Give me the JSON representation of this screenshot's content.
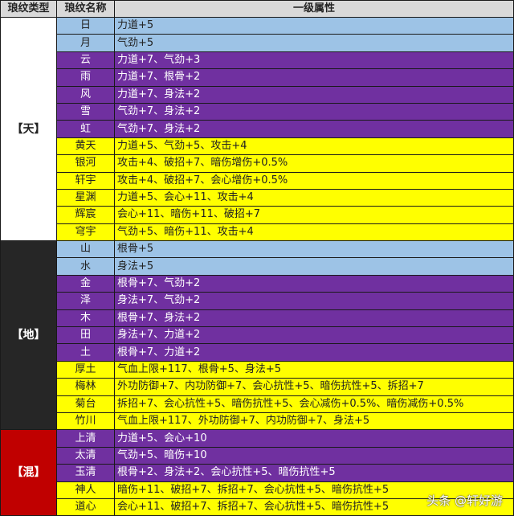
{
  "header": {
    "type": "琅纹类型",
    "name": "琅纹名称",
    "attr": "一级属性"
  },
  "colors": {
    "blue": "#9dc3e6",
    "purple": "#7030a0",
    "yellow": "#ffff00",
    "tian_bg": "#ffffff",
    "di_bg": "#262626",
    "hun_bg": "#c00000"
  },
  "groups": [
    {
      "label": "【天】",
      "bg": "#ffffff",
      "fg": "#222222",
      "rows": [
        {
          "name": "日",
          "attr": "力道+5",
          "tier": "blue"
        },
        {
          "name": "月",
          "attr": "气劲+5",
          "tier": "blue"
        },
        {
          "name": "云",
          "attr": "力道+7、气劲+3",
          "tier": "purple"
        },
        {
          "name": "雨",
          "attr": "力道+7、根骨+2",
          "tier": "purple"
        },
        {
          "name": "风",
          "attr": "力道+7、身法+2",
          "tier": "purple"
        },
        {
          "name": "雪",
          "attr": "气劲+7、身法+2",
          "tier": "purple"
        },
        {
          "name": "虹",
          "attr": "气劲+7、身法+2",
          "tier": "purple"
        },
        {
          "name": "黄天",
          "attr": "力道+5、气劲+5、攻击+4",
          "tier": "yellow"
        },
        {
          "name": "银河",
          "attr": "攻击+4、破招+7、暗伤增伤+0.5%",
          "tier": "yellow"
        },
        {
          "name": "轩宇",
          "attr": "攻击+4、破招+7、会心增伤+0.5%",
          "tier": "yellow"
        },
        {
          "name": "星渊",
          "attr": "力道+5、会心+11、攻击+4",
          "tier": "yellow"
        },
        {
          "name": "辉宸",
          "attr": "会心+11、暗伤+11、破招+7",
          "tier": "yellow"
        },
        {
          "name": "穹宇",
          "attr": "气劲+5、暗伤+11、攻击+4",
          "tier": "yellow"
        }
      ]
    },
    {
      "label": "【地】",
      "bg": "#262626",
      "fg": "#ffffff",
      "rows": [
        {
          "name": "山",
          "attr": "根骨+5",
          "tier": "blue"
        },
        {
          "name": "水",
          "attr": "身法+5",
          "tier": "blue"
        },
        {
          "name": "金",
          "attr": "根骨+7、气劲+2",
          "tier": "purple"
        },
        {
          "name": "泽",
          "attr": "身法+7、气劲+2",
          "tier": "purple"
        },
        {
          "name": "木",
          "attr": "根骨+7、身法+2",
          "tier": "purple"
        },
        {
          "name": "田",
          "attr": "身法+7、力道+2",
          "tier": "purple"
        },
        {
          "name": "土",
          "attr": "根骨+7、力道+2",
          "tier": "purple"
        },
        {
          "name": "厚土",
          "attr": "气血上限+117、根骨+5、身法+5",
          "tier": "yellow"
        },
        {
          "name": "梅林",
          "attr": "外功防御+7、内功防御+7、会心抗性+5、暗伤抗性+5、拆招+7",
          "tier": "yellow"
        },
        {
          "name": "菊台",
          "attr": "拆招+7、会心抗性+5、暗伤抗性+5、会心减伤+0.5%、暗伤减伤+0.5%",
          "tier": "yellow"
        },
        {
          "name": "竹川",
          "attr": "气血上限+117、外功防御+7、内功防御+7、身法+5",
          "tier": "yellow"
        }
      ]
    },
    {
      "label": "【混】",
      "bg": "#c00000",
      "fg": "#ffffff",
      "rows": [
        {
          "name": "上清",
          "attr": "力道+5、会心+10",
          "tier": "purple"
        },
        {
          "name": "太清",
          "attr": "气劲+5、暗伤+10",
          "tier": "purple"
        },
        {
          "name": "玉清",
          "attr": "根骨+2、身法+2、会心抗性+5、暗伤抗性+5",
          "tier": "purple"
        },
        {
          "name": "神人",
          "attr": "暗伤+11、破招+7、拆招+7、会心抗性+5、暗伤抗性+5",
          "tier": "yellow"
        },
        {
          "name": "道心",
          "attr": "会心+11、破招+7、拆招+7、会心抗性+5、暗伤抗性+5",
          "tier": "yellow"
        }
      ]
    }
  ],
  "watermark": "头条 @轩好游"
}
